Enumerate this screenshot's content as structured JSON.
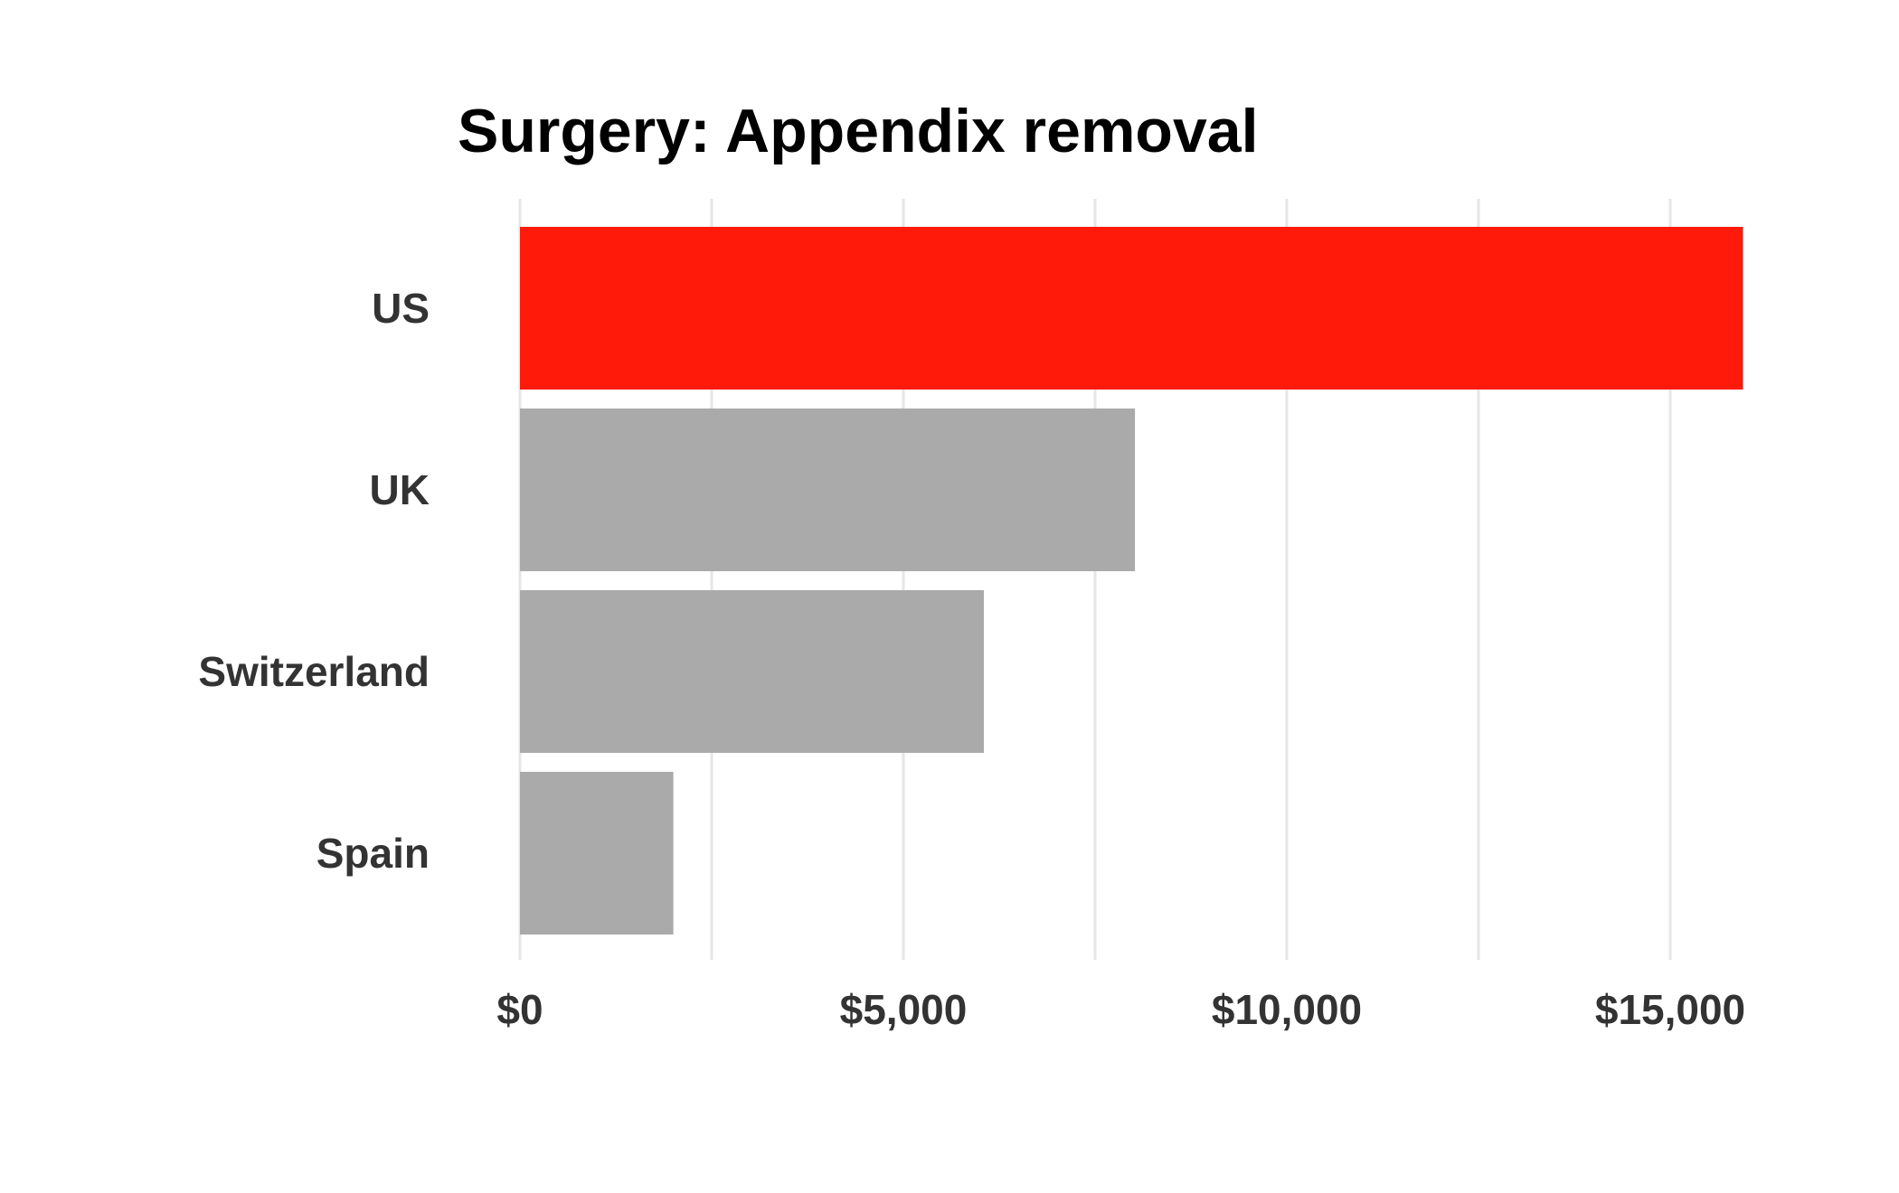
{
  "chart_data": {
    "type": "bar",
    "orientation": "horizontal",
    "title": "Surgery: Appendix removal",
    "xlabel": "",
    "ylabel": "",
    "categories": [
      "US",
      "UK",
      "Switzerland",
      "Spain"
    ],
    "values": [
      15950,
      8020,
      6050,
      2000
    ],
    "xlim": [
      0,
      16500
    ],
    "x_ticks": [
      {
        "value": 0,
        "label": "$0"
      },
      {
        "value": 5000,
        "label": "$5,000"
      },
      {
        "value": 10000,
        "label": "$10,000"
      },
      {
        "value": 15000,
        "label": "$15,000"
      }
    ],
    "minor_gridlines": [
      2500,
      7500,
      12500
    ],
    "grid": true,
    "legend": "none",
    "colors": {
      "highlight": "#ff1a0a",
      "default": "#aaaaaa",
      "grid": "#e6e6e6"
    },
    "highlight_category": "US"
  }
}
